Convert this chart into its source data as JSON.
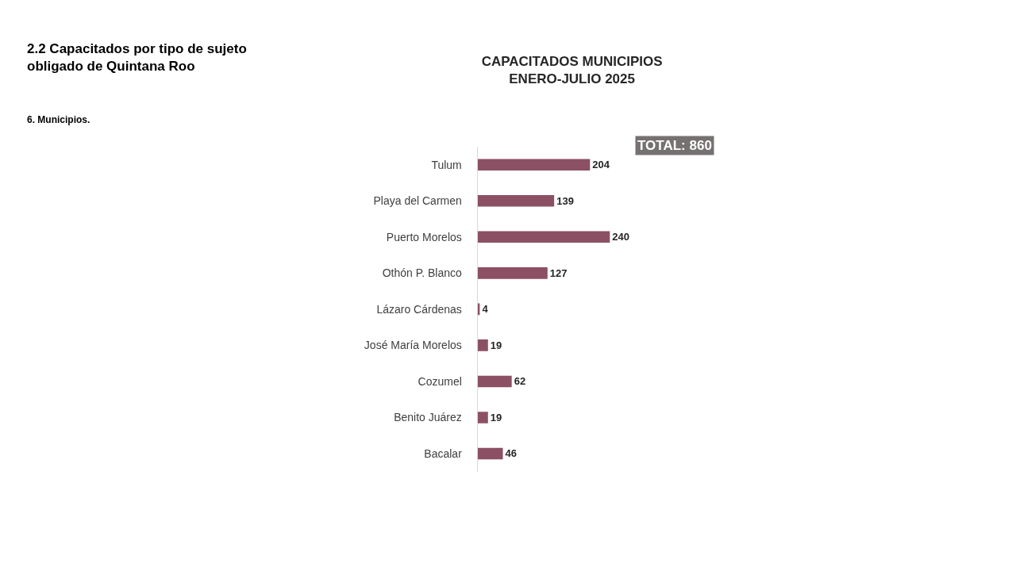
{
  "chart_data": {
    "type": "bar",
    "orientation": "horizontal",
    "title": "CAPACITADOS MUNICIPIOS\nENERO-JULIO 2025",
    "categories": [
      "Tulum",
      "Playa del Carmen",
      "Puerto Morelos",
      "Othón P. Blanco",
      "Lázaro Cárdenas",
      "José María Morelos",
      "Cozumel",
      "Benito Juárez",
      "Bacalar"
    ],
    "values": [
      204,
      139,
      240,
      127,
      4,
      19,
      62,
      19,
      46
    ],
    "color": "#8c5064",
    "data_labels": true,
    "legend": false,
    "tick_labels": "y",
    "annotations": [
      "2.2 Capacitados por tipo de sujeto\nobligado de Quintana Roo",
      "6. Municipios.",
      "TOTAL: 860"
    ]
  }
}
